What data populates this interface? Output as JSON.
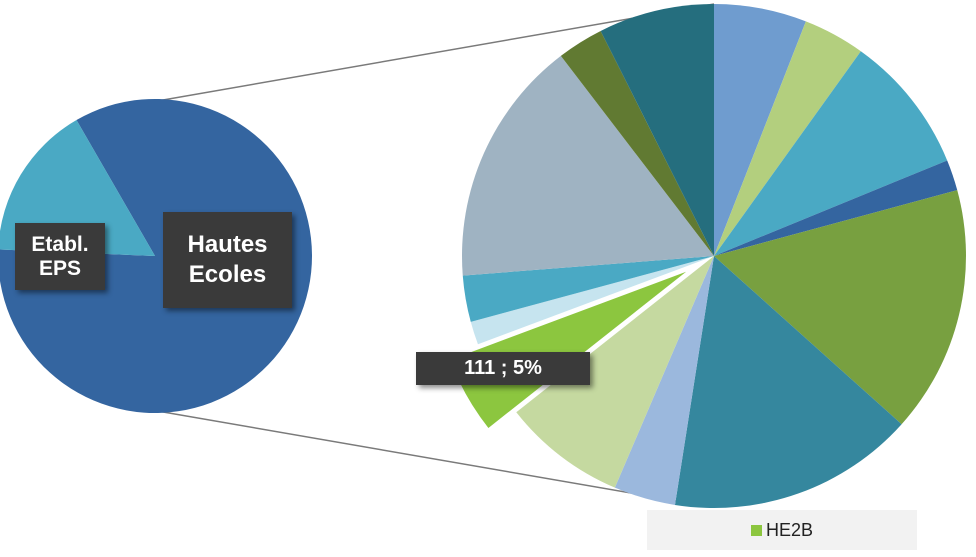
{
  "chart_data": [
    {
      "type": "pie",
      "slices": [
        {
          "label": "Hautes Ecoles",
          "value": 84,
          "color": "#3465a0"
        },
        {
          "label": "Etabl. EPS",
          "value": 16,
          "color": "#4aa9c4"
        }
      ]
    },
    {
      "type": "pie",
      "slices": [
        {
          "value": 6,
          "color": "#6f9ccf"
        },
        {
          "value": 4,
          "color": "#b3cf7e"
        },
        {
          "value": 9,
          "color": "#4aa9c4"
        },
        {
          "value": 2,
          "color": "#3465a0"
        },
        {
          "value": 16,
          "color": "#78a040"
        },
        {
          "value": 16,
          "color": "#35879e"
        },
        {
          "value": 4,
          "color": "#9bb8dd"
        },
        {
          "value": 8,
          "color": "#c5d9a0"
        },
        {
          "name": "HE2B",
          "value": 5,
          "value_label": "111 ; 5%",
          "color": "#8cc63f",
          "exploded": true
        },
        {
          "value": 1.5,
          "color": "#c6e4ef"
        },
        {
          "value": 3,
          "color": "#4aa9c4"
        },
        {
          "value": 16,
          "color": "#9fb3c2"
        },
        {
          "value": 3,
          "color": "#617a32"
        },
        {
          "value": 7.5,
          "color": "#256e7e"
        }
      ]
    }
  ],
  "labels": {
    "etabl": "Etabl.\nEPS",
    "hautes": "Hautes\nEcoles",
    "value": "111 ; 5%"
  },
  "legend": {
    "entries": [
      {
        "name": "HE2B",
        "color": "#8cc63f"
      }
    ]
  }
}
